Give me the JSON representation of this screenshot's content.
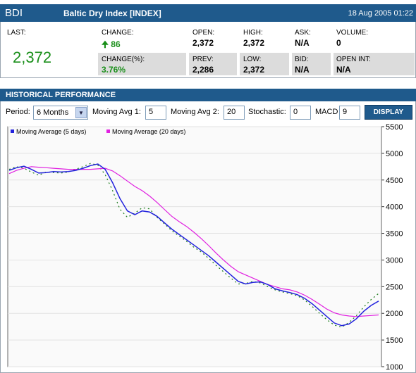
{
  "header": {
    "symbol": "BDI",
    "name": "Baltic Dry Index [INDEX]",
    "date": "18 Aug 2005 01:22"
  },
  "quote": {
    "last_label": "LAST:",
    "last_value": "2,372",
    "change_label": "CHANGE:",
    "change_value": "86",
    "change_arrow": "arrow-up-icon",
    "change_pct_label": "CHANGE(%):",
    "change_pct_value": "3.76%",
    "open_label": "OPEN:",
    "open_value": "2,372",
    "prev_label": "PREV:",
    "prev_value": "2,286",
    "high_label": "HIGH:",
    "high_value": "2,372",
    "low_label": "LOW:",
    "low_value": "2,372",
    "ask_label": "ASK:",
    "ask_value": "N/A",
    "bid_label": "BID:",
    "bid_value": "N/A",
    "volume_label": "VOLUME:",
    "volume_value": "0",
    "open_int_label": "OPEN INT:",
    "open_int_value": "N/A"
  },
  "historical": {
    "title": "HISTORICAL PERFORMANCE",
    "period_label": "Period:",
    "period_value": "6 Months",
    "ma1_label": "Moving Avg 1:",
    "ma1_value": "5",
    "ma2_label": "Moving Avg 2:",
    "ma2_value": "20",
    "stoch_label": "Stochastic:",
    "stoch_value": "0",
    "macd_label": "MACD",
    "macd_value": "9",
    "display_button": "DISPLAY"
  },
  "colors": {
    "header": "#1f5a8c",
    "ma5": "#2222dd",
    "ma20": "#e020e0",
    "price": "#1a7a1a"
  },
  "chart_data": {
    "type": "line",
    "ylim": [
      1000,
      5500
    ],
    "yticks": [
      1000,
      1500,
      2000,
      2500,
      3000,
      3500,
      4000,
      4500,
      5000,
      5500
    ],
    "legend_position": "top-left",
    "series": [
      {
        "name": "Moving Average (5 days)",
        "color": "#2222dd",
        "values": [
          4680,
          4730,
          4760,
          4700,
          4630,
          4640,
          4660,
          4650,
          4660,
          4680,
          4720,
          4770,
          4800,
          4700,
          4450,
          4150,
          3920,
          3850,
          3920,
          3900,
          3820,
          3700,
          3580,
          3480,
          3380,
          3280,
          3180,
          3080,
          2960,
          2840,
          2720,
          2600,
          2550,
          2580,
          2590,
          2540,
          2460,
          2420,
          2390,
          2350,
          2280,
          2180,
          2060,
          1940,
          1820,
          1770,
          1800,
          1900,
          2040,
          2150,
          2230
        ]
      },
      {
        "name": "Moving Average (20 days)",
        "color": "#e020e0",
        "values": [
          4620,
          4680,
          4720,
          4750,
          4740,
          4730,
          4720,
          4710,
          4700,
          4700,
          4700,
          4700,
          4710,
          4720,
          4670,
          4580,
          4480,
          4380,
          4300,
          4200,
          4080,
          3950,
          3820,
          3720,
          3630,
          3520,
          3400,
          3270,
          3130,
          3000,
          2880,
          2780,
          2720,
          2660,
          2600,
          2540,
          2500,
          2460,
          2440,
          2400,
          2340,
          2260,
          2170,
          2080,
          2010,
          1970,
          1950,
          1940,
          1950,
          1960,
          1970
        ]
      },
      {
        "name": "",
        "color": "#1a7a1a",
        "values": [
          4700,
          4750,
          4720,
          4650,
          4590,
          4650,
          4640,
          4630,
          4650,
          4700,
          4750,
          4810,
          4780,
          4600,
          4300,
          3950,
          3800,
          3880,
          3980,
          3960,
          3800,
          3680,
          3550,
          3450,
          3350,
          3240,
          3150,
          3030,
          2900,
          2780,
          2660,
          2550,
          2560,
          2600,
          2570,
          2500,
          2440,
          2400,
          2370,
          2330,
          2250,
          2130,
          2000,
          1880,
          1780,
          1740,
          1830,
          1960,
          2120,
          2260,
          2372
        ]
      }
    ]
  }
}
